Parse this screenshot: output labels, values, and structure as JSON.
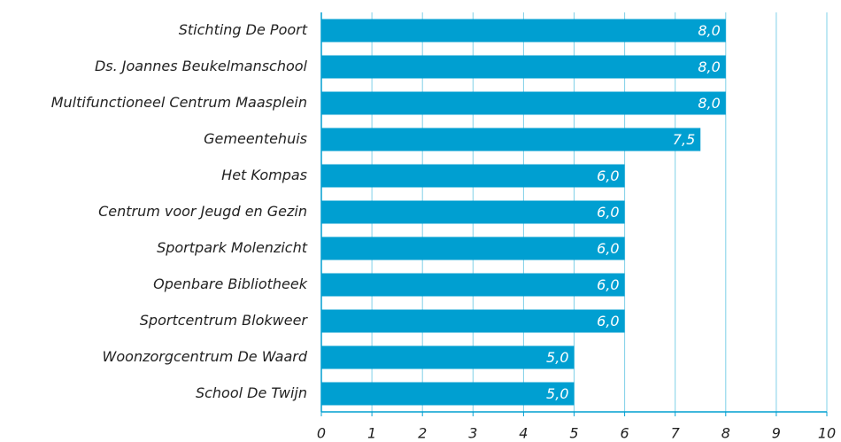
{
  "chart_data": {
    "type": "barh",
    "categories": [
      "Stichting De Poort",
      "Ds. Joannes Beukelmanschool",
      "Multifunctioneel Centrum Maasplein",
      "Gemeentehuis",
      "Het Kompas",
      "Centrum voor Jeugd en Gezin",
      "Sportpark Molenzicht",
      "Openbare Bibliotheek",
      "Sportcentrum Blokweer",
      "Woonzorgcentrum De Waard",
      "School De Twijn"
    ],
    "values": [
      8.0,
      8.0,
      8.0,
      7.5,
      6.0,
      6.0,
      6.0,
      6.0,
      6.0,
      5.0,
      5.0
    ],
    "value_labels": [
      "8,0",
      "8,0",
      "8,0",
      "7,5",
      "6,0",
      "6,0",
      "6,0",
      "6,0",
      "6,0",
      "5,0",
      "5,0"
    ],
    "color": "#009fd1",
    "xlim": [
      0,
      10
    ],
    "xticks": [
      0,
      1,
      2,
      3,
      4,
      5,
      6,
      7,
      8,
      9,
      10
    ],
    "grid": true
  }
}
